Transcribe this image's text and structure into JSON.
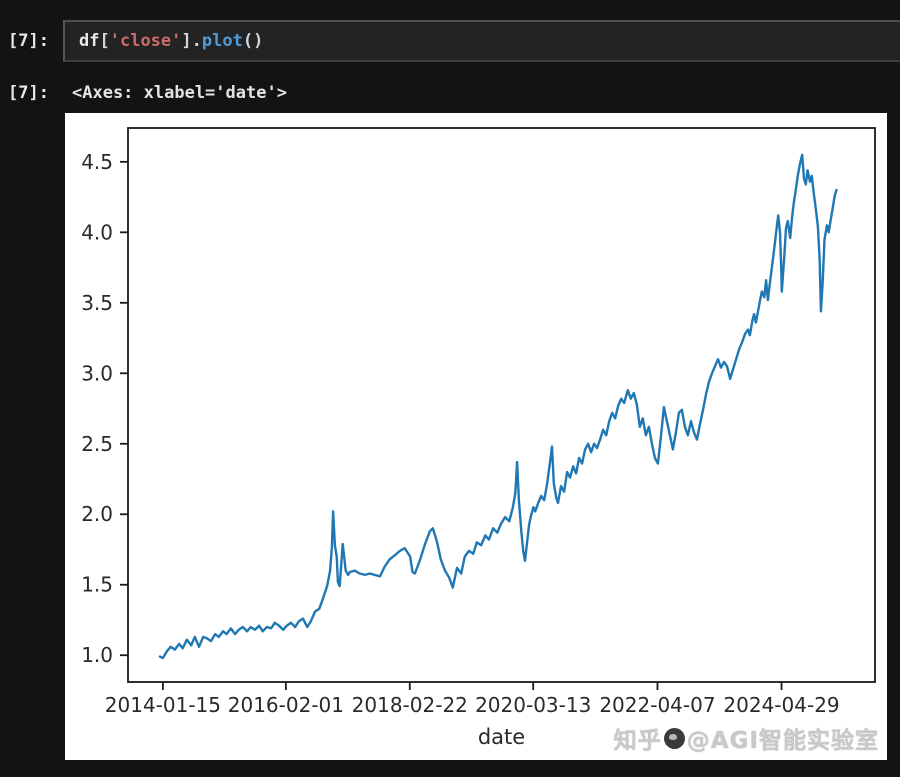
{
  "notebook": {
    "cell": {
      "execution_prompt": "[7]:",
      "code_tokens": [
        {
          "text": "df",
          "type": "name"
        },
        {
          "text": "[",
          "type": "punct"
        },
        {
          "text": "'close'",
          "type": "string"
        },
        {
          "text": "]",
          "type": "punct"
        },
        {
          "text": ".",
          "type": "punct"
        },
        {
          "text": "plot",
          "type": "function"
        },
        {
          "text": "()",
          "type": "punct"
        }
      ]
    },
    "output": {
      "execution_prompt": "[7]:",
      "text_repr": "<Axes: xlabel='date'>"
    }
  },
  "watermark": {
    "site": "知乎",
    "handle": "@AGI智能实验室"
  },
  "colors": {
    "page_background": "#131313",
    "cell_background": "#232323",
    "code_string": "#cd6a6a",
    "code_function": "#4d9bd9",
    "code_default": "#e9e9e9",
    "figure_background": "#ffffff",
    "line_color": "#1f77b4",
    "axis_color": "#1a1a1a",
    "tick_label_color": "#2a2a2a",
    "watermark_color": "#c9c9c9"
  },
  "chart_data": {
    "type": "line",
    "title": "",
    "xlabel": "date",
    "ylabel": "",
    "legend": null,
    "grid": false,
    "xlim": [
      2013.46,
      2025.88
    ],
    "ylim": [
      0.81,
      4.74
    ],
    "x_ticks": [
      {
        "value": 2014.04,
        "label": "2014-01-15"
      },
      {
        "value": 2016.085,
        "label": "2016-02-01"
      },
      {
        "value": 2018.145,
        "label": "2018-02-22"
      },
      {
        "value": 2020.197,
        "label": "2020-03-13"
      },
      {
        "value": 2022.263,
        "label": "2022-04-07"
      },
      {
        "value": 2024.326,
        "label": "2024-04-29"
      }
    ],
    "y_ticks": [
      {
        "value": 1.0,
        "label": "1.0"
      },
      {
        "value": 1.5,
        "label": "1.5"
      },
      {
        "value": 2.0,
        "label": "2.0"
      },
      {
        "value": 2.5,
        "label": "2.5"
      },
      {
        "value": 3.0,
        "label": "3.0"
      },
      {
        "value": 3.5,
        "label": "3.5"
      },
      {
        "value": 4.0,
        "label": "4.0"
      },
      {
        "value": 4.5,
        "label": "4.5"
      }
    ],
    "series": [
      {
        "name": "close",
        "points": [
          [
            2013.99,
            0.99
          ],
          [
            2014.04,
            0.98
          ],
          [
            2014.11,
            1.03
          ],
          [
            2014.17,
            1.06
          ],
          [
            2014.24,
            1.04
          ],
          [
            2014.31,
            1.08
          ],
          [
            2014.37,
            1.05
          ],
          [
            2014.44,
            1.11
          ],
          [
            2014.51,
            1.07
          ],
          [
            2014.57,
            1.13
          ],
          [
            2014.64,
            1.06
          ],
          [
            2014.71,
            1.13
          ],
          [
            2014.77,
            1.12
          ],
          [
            2014.84,
            1.1
          ],
          [
            2014.91,
            1.15
          ],
          [
            2014.97,
            1.13
          ],
          [
            2015.04,
            1.17
          ],
          [
            2015.1,
            1.15
          ],
          [
            2015.17,
            1.19
          ],
          [
            2015.24,
            1.15
          ],
          [
            2015.3,
            1.18
          ],
          [
            2015.37,
            1.2
          ],
          [
            2015.44,
            1.17
          ],
          [
            2015.5,
            1.2
          ],
          [
            2015.57,
            1.18
          ],
          [
            2015.64,
            1.21
          ],
          [
            2015.7,
            1.17
          ],
          [
            2015.77,
            1.2
          ],
          [
            2015.84,
            1.19
          ],
          [
            2015.9,
            1.23
          ],
          [
            2015.97,
            1.21
          ],
          [
            2016.04,
            1.18
          ],
          [
            2016.1,
            1.21
          ],
          [
            2016.17,
            1.23
          ],
          [
            2016.24,
            1.2
          ],
          [
            2016.3,
            1.24
          ],
          [
            2016.37,
            1.26
          ],
          [
            2016.44,
            1.2
          ],
          [
            2016.5,
            1.24
          ],
          [
            2016.57,
            1.31
          ],
          [
            2016.64,
            1.33
          ],
          [
            2016.7,
            1.4
          ],
          [
            2016.77,
            1.49
          ],
          [
            2016.82,
            1.6
          ],
          [
            2016.85,
            1.77
          ],
          [
            2016.87,
            2.02
          ],
          [
            2016.9,
            1.78
          ],
          [
            2016.93,
            1.7
          ],
          [
            2016.95,
            1.52
          ],
          [
            2016.98,
            1.49
          ],
          [
            2017.03,
            1.79
          ],
          [
            2017.08,
            1.6
          ],
          [
            2017.12,
            1.57
          ],
          [
            2017.15,
            1.59
          ],
          [
            2017.23,
            1.6
          ],
          [
            2017.31,
            1.58
          ],
          [
            2017.4,
            1.57
          ],
          [
            2017.48,
            1.58
          ],
          [
            2017.56,
            1.57
          ],
          [
            2017.65,
            1.56
          ],
          [
            2017.73,
            1.63
          ],
          [
            2017.81,
            1.68
          ],
          [
            2017.9,
            1.71
          ],
          [
            2017.98,
            1.74
          ],
          [
            2018.06,
            1.76
          ],
          [
            2018.15,
            1.7
          ],
          [
            2018.19,
            1.59
          ],
          [
            2018.23,
            1.58
          ],
          [
            2018.31,
            1.67
          ],
          [
            2018.4,
            1.79
          ],
          [
            2018.48,
            1.88
          ],
          [
            2018.53,
            1.9
          ],
          [
            2018.6,
            1.8
          ],
          [
            2018.66,
            1.68
          ],
          [
            2018.73,
            1.6
          ],
          [
            2018.8,
            1.55
          ],
          [
            2018.86,
            1.48
          ],
          [
            2018.93,
            1.62
          ],
          [
            2019.0,
            1.58
          ],
          [
            2019.06,
            1.7
          ],
          [
            2019.13,
            1.74
          ],
          [
            2019.2,
            1.72
          ],
          [
            2019.26,
            1.8
          ],
          [
            2019.33,
            1.78
          ],
          [
            2019.4,
            1.85
          ],
          [
            2019.46,
            1.82
          ],
          [
            2019.53,
            1.9
          ],
          [
            2019.6,
            1.87
          ],
          [
            2019.66,
            1.93
          ],
          [
            2019.73,
            1.98
          ],
          [
            2019.8,
            1.95
          ],
          [
            2019.86,
            2.05
          ],
          [
            2019.9,
            2.15
          ],
          [
            2019.93,
            2.37
          ],
          [
            2019.96,
            2.1
          ],
          [
            2020.0,
            1.88
          ],
          [
            2020.03,
            1.74
          ],
          [
            2020.06,
            1.67
          ],
          [
            2020.1,
            1.82
          ],
          [
            2020.13,
            1.93
          ],
          [
            2020.16,
            1.99
          ],
          [
            2020.2,
            2.05
          ],
          [
            2020.23,
            2.02
          ],
          [
            2020.28,
            2.08
          ],
          [
            2020.33,
            2.13
          ],
          [
            2020.38,
            2.1
          ],
          [
            2020.43,
            2.22
          ],
          [
            2020.48,
            2.38
          ],
          [
            2020.51,
            2.48
          ],
          [
            2020.54,
            2.22
          ],
          [
            2020.58,
            2.12
          ],
          [
            2020.61,
            2.08
          ],
          [
            2020.66,
            2.2
          ],
          [
            2020.71,
            2.16
          ],
          [
            2020.76,
            2.3
          ],
          [
            2020.81,
            2.26
          ],
          [
            2020.86,
            2.34
          ],
          [
            2020.91,
            2.29
          ],
          [
            2020.96,
            2.4
          ],
          [
            2021.01,
            2.36
          ],
          [
            2021.06,
            2.46
          ],
          [
            2021.11,
            2.5
          ],
          [
            2021.16,
            2.44
          ],
          [
            2021.21,
            2.5
          ],
          [
            2021.26,
            2.47
          ],
          [
            2021.31,
            2.53
          ],
          [
            2021.36,
            2.6
          ],
          [
            2021.41,
            2.56
          ],
          [
            2021.46,
            2.66
          ],
          [
            2021.51,
            2.72
          ],
          [
            2021.56,
            2.68
          ],
          [
            2021.61,
            2.77
          ],
          [
            2021.66,
            2.82
          ],
          [
            2021.71,
            2.79
          ],
          [
            2021.77,
            2.88
          ],
          [
            2021.82,
            2.82
          ],
          [
            2021.87,
            2.86
          ],
          [
            2021.92,
            2.78
          ],
          [
            2021.97,
            2.62
          ],
          [
            2022.02,
            2.68
          ],
          [
            2022.07,
            2.56
          ],
          [
            2022.12,
            2.62
          ],
          [
            2022.17,
            2.5
          ],
          [
            2022.22,
            2.4
          ],
          [
            2022.27,
            2.36
          ],
          [
            2022.32,
            2.55
          ],
          [
            2022.37,
            2.76
          ],
          [
            2022.42,
            2.66
          ],
          [
            2022.47,
            2.56
          ],
          [
            2022.52,
            2.46
          ],
          [
            2022.57,
            2.58
          ],
          [
            2022.62,
            2.72
          ],
          [
            2022.67,
            2.74
          ],
          [
            2022.72,
            2.62
          ],
          [
            2022.77,
            2.56
          ],
          [
            2022.82,
            2.66
          ],
          [
            2022.87,
            2.58
          ],
          [
            2022.92,
            2.53
          ],
          [
            2022.97,
            2.64
          ],
          [
            2023.02,
            2.74
          ],
          [
            2023.07,
            2.85
          ],
          [
            2023.12,
            2.94
          ],
          [
            2023.17,
            3.0
          ],
          [
            2023.22,
            3.05
          ],
          [
            2023.27,
            3.1
          ],
          [
            2023.32,
            3.04
          ],
          [
            2023.37,
            3.08
          ],
          [
            2023.42,
            3.05
          ],
          [
            2023.47,
            2.96
          ],
          [
            2023.52,
            3.03
          ],
          [
            2023.57,
            3.1
          ],
          [
            2023.62,
            3.17
          ],
          [
            2023.67,
            3.22
          ],
          [
            2023.72,
            3.28
          ],
          [
            2023.77,
            3.31
          ],
          [
            2023.8,
            3.27
          ],
          [
            2023.84,
            3.37
          ],
          [
            2023.87,
            3.42
          ],
          [
            2023.9,
            3.36
          ],
          [
            2023.94,
            3.45
          ],
          [
            2023.97,
            3.52
          ],
          [
            2024.0,
            3.58
          ],
          [
            2024.04,
            3.54
          ],
          [
            2024.07,
            3.66
          ],
          [
            2024.1,
            3.52
          ],
          [
            2024.13,
            3.63
          ],
          [
            2024.17,
            3.77
          ],
          [
            2024.2,
            3.87
          ],
          [
            2024.23,
            3.98
          ],
          [
            2024.27,
            4.12
          ],
          [
            2024.3,
            4.0
          ],
          [
            2024.32,
            3.75
          ],
          [
            2024.33,
            3.58
          ],
          [
            2024.37,
            3.82
          ],
          [
            2024.4,
            4.03
          ],
          [
            2024.43,
            4.08
          ],
          [
            2024.47,
            3.96
          ],
          [
            2024.5,
            4.1
          ],
          [
            2024.53,
            4.21
          ],
          [
            2024.57,
            4.32
          ],
          [
            2024.6,
            4.41
          ],
          [
            2024.63,
            4.48
          ],
          [
            2024.67,
            4.55
          ],
          [
            2024.7,
            4.38
          ],
          [
            2024.73,
            4.34
          ],
          [
            2024.76,
            4.44
          ],
          [
            2024.8,
            4.36
          ],
          [
            2024.83,
            4.4
          ],
          [
            2024.86,
            4.28
          ],
          [
            2024.9,
            4.15
          ],
          [
            2024.93,
            4.04
          ],
          [
            2024.96,
            3.8
          ],
          [
            2024.98,
            3.44
          ],
          [
            2025.01,
            3.65
          ],
          [
            2025.04,
            3.95
          ],
          [
            2025.08,
            4.05
          ],
          [
            2025.11,
            4.0
          ],
          [
            2025.14,
            4.08
          ],
          [
            2025.18,
            4.18
          ],
          [
            2025.21,
            4.26
          ],
          [
            2025.24,
            4.3
          ]
        ]
      }
    ]
  }
}
